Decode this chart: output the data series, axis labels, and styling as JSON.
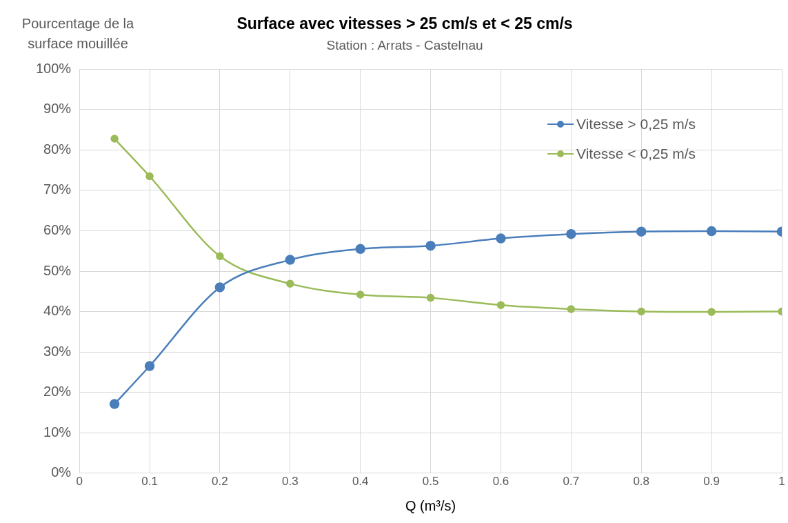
{
  "chart_data": {
    "type": "line",
    "title": "Surface avec vitesses > 25 cm/s et < 25 cm/s",
    "subtitle": "Station : Arrats - Castelnau",
    "xlabel": "Q (m³/s)",
    "ylabel": "Pourcentage de la surface mouillée",
    "x": [
      0.05,
      0.1,
      0.2,
      0.3,
      0.4,
      0.5,
      0.6,
      0.7,
      0.8,
      0.9,
      1.0
    ],
    "series": [
      {
        "name": "Vitesse > 0,25 m/s",
        "color": "#4a7ebb",
        "values": [
          17.1,
          26.5,
          46,
          52.8,
          55.5,
          56.3,
          58.1,
          59.2,
          59.8,
          59.9,
          59.8
        ]
      },
      {
        "name": "Vitesse < 0,25 m/s",
        "color": "#9bbb59",
        "values": [
          82.8,
          73.5,
          53.7,
          46.9,
          44.2,
          43.4,
          41.6,
          40.6,
          40.0,
          39.9,
          40.0
        ]
      }
    ],
    "xlim": [
      0,
      1
    ],
    "xticks": [
      0,
      0.1,
      0.2,
      0.3,
      0.4,
      0.5,
      0.6,
      0.7,
      0.8,
      0.9,
      1
    ],
    "ylim": [
      0,
      100
    ],
    "yticks": [
      {
        "value": 0,
        "label": "0%"
      },
      {
        "value": 10,
        "label": "10%"
      },
      {
        "value": 20,
        "label": "20%"
      },
      {
        "value": 30,
        "label": "30%"
      },
      {
        "value": 40,
        "label": "40%"
      },
      {
        "value": 50,
        "label": "50%"
      },
      {
        "value": 60,
        "label": "60%"
      },
      {
        "value": 70,
        "label": "70%"
      },
      {
        "value": 80,
        "label": "80%"
      },
      {
        "value": 90,
        "label": "90%"
      },
      {
        "value": 100,
        "label": "100%"
      }
    ],
    "grid": true,
    "legend": "top right",
    "marker": "circle",
    "line_style": "solid"
  }
}
